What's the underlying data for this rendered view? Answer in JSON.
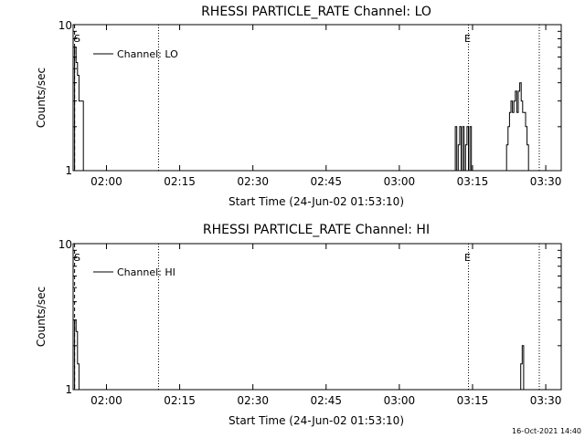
{
  "footer": {
    "timestamp": "16-Oct-2021 14:40"
  },
  "chart_data": [
    {
      "type": "line",
      "title": "RHESSI PARTICLE_RATE Channel: LO",
      "xlabel": "Start Time (24-Jun-02 01:53:10)",
      "ylabel": "Counts/sec",
      "x_unit": "minutes since 01:53:10",
      "xlim": [
        0,
        100
      ],
      "ylim": [
        1,
        10
      ],
      "y_scale": "log",
      "y_ticks": [
        {
          "value": 1,
          "label": "1"
        },
        {
          "value": 10,
          "label": "10"
        }
      ],
      "x_ticks": [
        {
          "value": 6.83,
          "label": "02:00"
        },
        {
          "value": 21.83,
          "label": "02:15"
        },
        {
          "value": 36.83,
          "label": "02:30"
        },
        {
          "value": 51.83,
          "label": "02:45"
        },
        {
          "value": 66.83,
          "label": "03:00"
        },
        {
          "value": 81.83,
          "label": "03:15"
        },
        {
          "value": 96.83,
          "label": "03:30"
        }
      ],
      "legend": {
        "label": "Channel: LO",
        "position": "top-left"
      },
      "vlines": [
        {
          "x": 0.3,
          "style": "dashed",
          "label": "S"
        },
        {
          "x": 17.5,
          "style": "dotted",
          "label": ""
        },
        {
          "x": 81.0,
          "style": "dotted",
          "label": "E"
        },
        {
          "x": 95.5,
          "style": "dotted",
          "label": ""
        }
      ],
      "series": [
        {
          "name": "Channel: LO",
          "x": [
            0.0,
            0.3,
            0.6,
            0.9,
            1.2,
            1.5,
            1.8,
            2.1,
            2.4,
            2.7,
            3.0,
            78.0,
            78.3,
            78.6,
            78.9,
            79.2,
            79.5,
            79.8,
            80.1,
            80.4,
            80.7,
            81.0,
            81.3,
            81.6,
            81.9,
            82.2,
            82.5,
            88.5,
            88.8,
            89.1,
            89.4,
            89.7,
            90.0,
            90.3,
            90.6,
            90.9,
            91.2,
            91.5,
            91.8,
            92.1,
            92.4,
            92.7,
            93.0,
            93.3,
            93.6,
            93.9
          ],
          "y": [
            1.0,
            7.0,
            5.5,
            4.5,
            3.0,
            3.0,
            3.0,
            1.0,
            1.0,
            1.0,
            1.0,
            1.0,
            2.0,
            1.0,
            1.5,
            2.0,
            1.0,
            2.0,
            1.0,
            1.5,
            2.0,
            1.0,
            2.0,
            1.0,
            1.0,
            1.0,
            1.0,
            1.0,
            1.5,
            2.0,
            2.5,
            3.0,
            2.5,
            3.0,
            3.5,
            2.5,
            3.5,
            4.0,
            3.0,
            2.5,
            2.5,
            2.0,
            1.5,
            1.0,
            1.0,
            1.0
          ]
        }
      ]
    },
    {
      "type": "line",
      "title": "RHESSI PARTICLE_RATE Channel: HI",
      "xlabel": "Start Time (24-Jun-02 01:53:10)",
      "ylabel": "Counts/sec",
      "x_unit": "minutes since 01:53:10",
      "xlim": [
        0,
        100
      ],
      "ylim": [
        1,
        10
      ],
      "y_scale": "log",
      "y_ticks": [
        {
          "value": 1,
          "label": "1"
        },
        {
          "value": 10,
          "label": "10"
        }
      ],
      "x_ticks": [
        {
          "value": 6.83,
          "label": "02:00"
        },
        {
          "value": 21.83,
          "label": "02:15"
        },
        {
          "value": 36.83,
          "label": "02:30"
        },
        {
          "value": 51.83,
          "label": "02:45"
        },
        {
          "value": 66.83,
          "label": "03:00"
        },
        {
          "value": 81.83,
          "label": "03:15"
        },
        {
          "value": 96.83,
          "label": "03:30"
        }
      ],
      "legend": {
        "label": "Channel: HI",
        "position": "top-left"
      },
      "vlines": [
        {
          "x": 0.3,
          "style": "dashed",
          "label": "S"
        },
        {
          "x": 17.5,
          "style": "dotted",
          "label": ""
        },
        {
          "x": 81.0,
          "style": "dotted",
          "label": "E"
        },
        {
          "x": 95.5,
          "style": "dotted",
          "label": ""
        }
      ],
      "series": [
        {
          "name": "Channel: HI",
          "x": [
            0.0,
            0.3,
            0.6,
            0.9,
            1.2,
            1.5,
            1.8,
            2.1,
            91.4,
            91.7,
            92.0,
            92.3,
            92.6,
            92.9
          ],
          "y": [
            1.0,
            3.0,
            2.5,
            1.5,
            1.0,
            1.0,
            1.0,
            1.0,
            1.0,
            1.5,
            2.0,
            1.0,
            1.0,
            1.0
          ]
        }
      ]
    }
  ]
}
